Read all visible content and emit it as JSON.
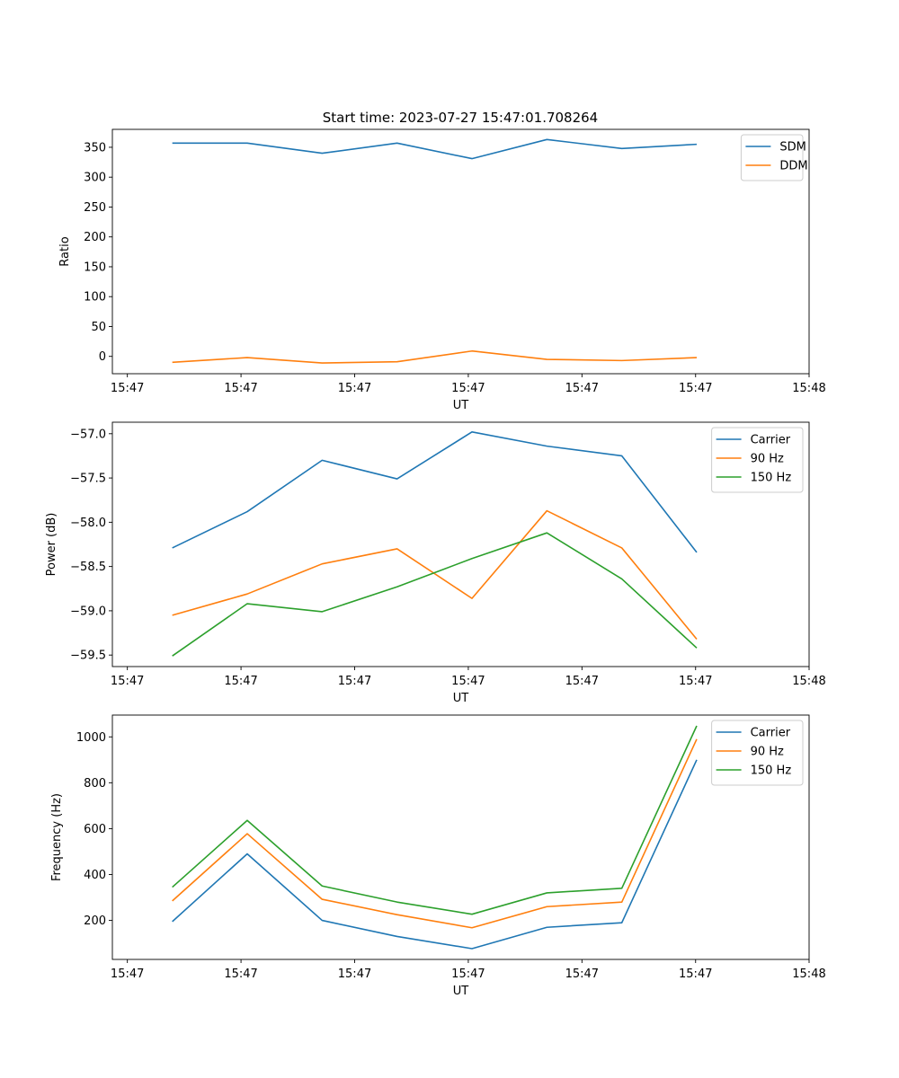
{
  "figure": {
    "title": "Start time: 2023-07-27 15:47:01.708264"
  },
  "chart_data": [
    {
      "type": "line",
      "ylabel": "Ratio",
      "xlabel": "UT",
      "x": [
        1,
        2,
        3,
        4,
        5,
        6,
        7,
        8
      ],
      "xlim": [
        0.2,
        9.5
      ],
      "xticks": [
        0.4,
        1.917,
        3.434,
        4.951,
        6.468,
        7.985,
        9.5
      ],
      "xtick_labels": [
        "15:47",
        "15:47",
        "15:47",
        "15:47",
        "15:47",
        "15:47",
        "15:48"
      ],
      "ylim": [
        -29,
        380
      ],
      "yticks": [
        0,
        50,
        100,
        150,
        200,
        250,
        300,
        350
      ],
      "ytick_labels": [
        "0",
        "50",
        "100",
        "150",
        "200",
        "250",
        "300",
        "350"
      ],
      "legend_position": "top-right",
      "series": [
        {
          "name": "SDM",
          "color": "#1f77b4",
          "values": [
            357,
            357,
            340,
            357,
            331,
            363,
            348,
            355
          ]
        },
        {
          "name": "DDM",
          "color": "#ff7f0e",
          "values": [
            -10,
            -2,
            -11,
            -9,
            9,
            -5,
            -7,
            -2
          ]
        }
      ]
    },
    {
      "type": "line",
      "ylabel": "Power (dB)",
      "xlabel": "UT",
      "x": [
        1,
        2,
        3,
        4,
        5,
        6,
        7,
        8
      ],
      "xlim": [
        0.2,
        9.5
      ],
      "xticks": [
        0.4,
        1.917,
        3.434,
        4.951,
        6.468,
        7.985,
        9.5
      ],
      "xtick_labels": [
        "15:47",
        "15:47",
        "15:47",
        "15:47",
        "15:47",
        "15:47",
        "15:48"
      ],
      "ylim": [
        -59.63,
        -56.87
      ],
      "yticks": [
        -59.5,
        -59.0,
        -58.5,
        -58.0,
        -57.5,
        -57.0
      ],
      "ytick_labels": [
        "−59.5",
        "−59.0",
        "−58.5",
        "−58.0",
        "−57.5",
        "−57.0"
      ],
      "legend_position": "top-right",
      "series": [
        {
          "name": "Carrier",
          "color": "#1f77b4",
          "values": [
            -58.29,
            -57.88,
            -57.3,
            -57.51,
            -56.98,
            -57.14,
            -57.25,
            -58.34
          ]
        },
        {
          "name": "90 Hz",
          "color": "#ff7f0e",
          "values": [
            -59.05,
            -58.81,
            -58.47,
            -58.3,
            -58.86,
            -57.87,
            -58.29,
            -59.32
          ]
        },
        {
          "name": "150 Hz",
          "color": "#2ca02c",
          "values": [
            -59.51,
            -58.92,
            -59.01,
            -58.73,
            -58.41,
            -58.12,
            -58.64,
            -59.42
          ]
        }
      ]
    },
    {
      "type": "line",
      "ylabel": "Frequency (Hz)",
      "xlabel": "UT",
      "x": [
        1,
        2,
        3,
        4,
        5,
        6,
        7,
        8
      ],
      "xlim": [
        0.2,
        9.5
      ],
      "xticks": [
        0.4,
        1.917,
        3.434,
        4.951,
        6.468,
        7.985,
        9.5
      ],
      "xtick_labels": [
        "15:47",
        "15:47",
        "15:47",
        "15:47",
        "15:47",
        "15:47",
        "15:48"
      ],
      "ylim": [
        30,
        1095
      ],
      "yticks": [
        200,
        400,
        600,
        800,
        1000
      ],
      "ytick_labels": [
        "200",
        "400",
        "600",
        "800",
        "1000"
      ],
      "legend_position": "top-right",
      "series": [
        {
          "name": "Carrier",
          "color": "#1f77b4",
          "values": [
            195,
            490,
            200,
            130,
            77,
            170,
            190,
            900
          ]
        },
        {
          "name": "90 Hz",
          "color": "#ff7f0e",
          "values": [
            285,
            578,
            292,
            225,
            168,
            260,
            280,
            990
          ]
        },
        {
          "name": "150 Hz",
          "color": "#2ca02c",
          "values": [
            345,
            636,
            350,
            280,
            227,
            320,
            340,
            1048
          ]
        }
      ]
    }
  ]
}
